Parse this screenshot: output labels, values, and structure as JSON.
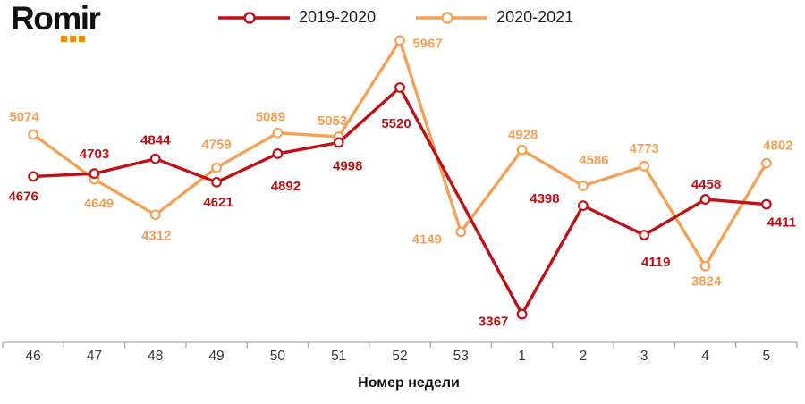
{
  "logo": {
    "text": "Romir",
    "text_color": "#111111",
    "dots_color": "#F28C0F"
  },
  "chart_data": {
    "type": "line",
    "title": "",
    "x_categories": [
      "46",
      "47",
      "48",
      "49",
      "50",
      "51",
      "52",
      "53",
      "1",
      "2",
      "3",
      "4",
      "5"
    ],
    "xlabel": "Номер недели",
    "ylabel": "",
    "ylim": [
      3100,
      6250
    ],
    "grid": false,
    "legend_position": "top-center",
    "axis_color": "#A6A6A6",
    "tick_label_color": "#383838",
    "marker": "open-circle",
    "series": [
      {
        "name": "2019-2020",
        "color": "#BE1116",
        "values": [
          4676,
          4703,
          4844,
          4621,
          4892,
          4998,
          5520,
          null,
          3367,
          4398,
          4119,
          4458,
          4411
        ],
        "label_offsets": [
          [
            -11,
            22
          ],
          [
            0,
            -22
          ],
          [
            0,
            -21
          ],
          [
            2,
            22
          ],
          [
            9,
            36
          ],
          [
            10,
            26
          ],
          [
            -4,
            40
          ],
          null,
          [
            -32,
            8
          ],
          [
            -43,
            -8
          ],
          [
            13,
            30
          ],
          [
            1,
            -17
          ],
          [
            17,
            20
          ]
        ]
      },
      {
        "name": "2020-2021",
        "color": "#F2A157",
        "values": [
          5074,
          4649,
          4312,
          4759,
          5089,
          5053,
          5967,
          4149,
          4928,
          4586,
          4773,
          3824,
          4802
        ],
        "label_offsets": [
          [
            -10,
            -20
          ],
          [
            5,
            27
          ],
          [
            1,
            23
          ],
          [
            0,
            -26
          ],
          [
            -8,
            -18
          ],
          [
            -7,
            -18
          ],
          [
            31,
            3
          ],
          [
            -38,
            8
          ],
          [
            1,
            -17
          ],
          [
            12,
            -29
          ],
          [
            0,
            -20
          ],
          [
            1,
            17
          ],
          [
            13,
            -20
          ]
        ]
      }
    ]
  }
}
